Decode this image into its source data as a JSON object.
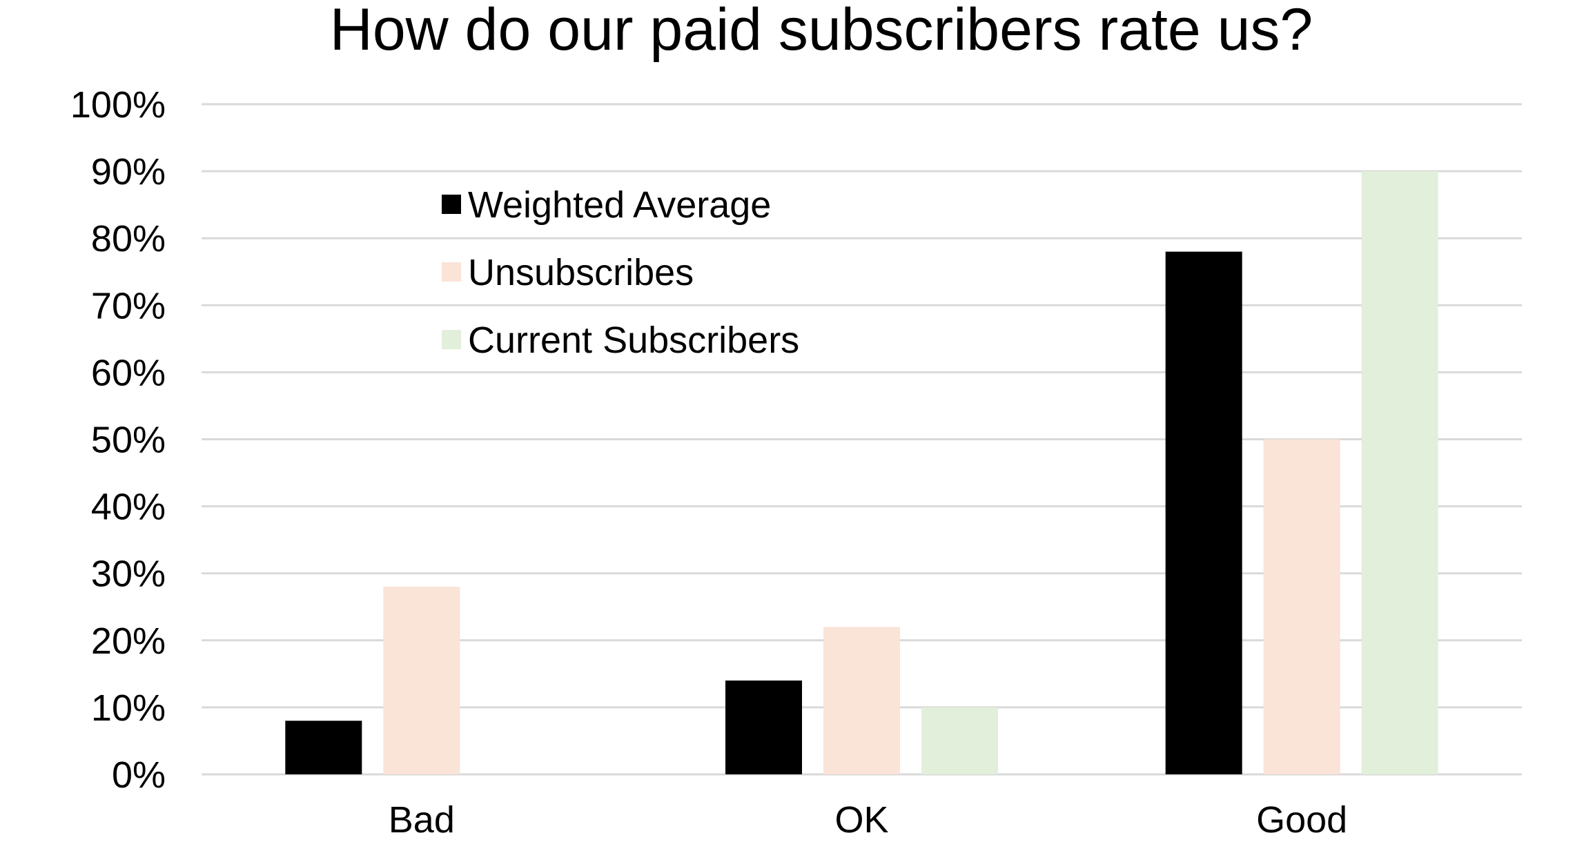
{
  "chart_data": {
    "type": "bar",
    "title": "How do our paid subscribers rate us?",
    "xlabel": "",
    "ylabel": "",
    "categories": [
      "Bad",
      "OK",
      "Good"
    ],
    "series": [
      {
        "name": "Weighted Average",
        "values": [
          8,
          14,
          78
        ],
        "color": "#000000"
      },
      {
        "name": "Unsubscribes",
        "values": [
          28,
          22,
          50
        ],
        "color": "#FAE3D7"
      },
      {
        "name": "Current Subscribers",
        "values": [
          0,
          10,
          90
        ],
        "color": "#E2EFDA"
      }
    ],
    "ylim": [
      0,
      100
    ],
    "yticks": [
      "0%",
      "10%",
      "20%",
      "30%",
      "40%",
      "50%",
      "60%",
      "70%",
      "80%",
      "90%",
      "100%"
    ],
    "grid": true,
    "legend_position": "top-left"
  }
}
